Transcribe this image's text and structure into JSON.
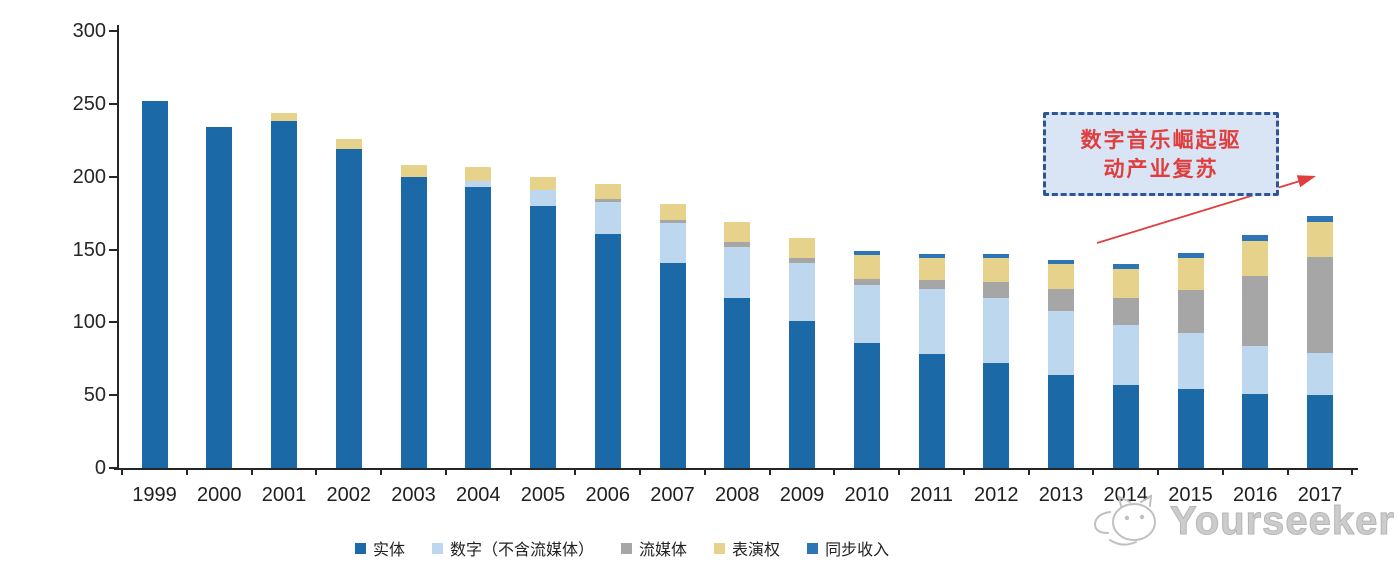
{
  "chart_data": {
    "type": "bar",
    "stacked": true,
    "categories": [
      "1999",
      "2000",
      "2001",
      "2002",
      "2003",
      "2004",
      "2005",
      "2006",
      "2007",
      "2008",
      "2009",
      "2010",
      "2011",
      "2012",
      "2013",
      "2014",
      "2015",
      "2016",
      "2017"
    ],
    "series": [
      {
        "name": "实体",
        "color": "#1C69A8",
        "values": [
          252,
          234,
          238,
          219,
          200,
          193,
          180,
          161,
          141,
          117,
          101,
          86,
          78,
          72,
          64,
          57,
          54,
          51,
          50
        ]
      },
      {
        "name": "数字（不含流媒体）",
        "color": "#BDD7EE",
        "values": [
          0,
          0,
          0,
          0,
          0,
          4,
          11,
          22,
          27,
          35,
          40,
          40,
          45,
          45,
          44,
          41,
          39,
          33,
          29
        ]
      },
      {
        "name": "流媒体",
        "color": "#A6A6A6",
        "values": [
          0,
          0,
          0,
          0,
          0,
          0,
          0,
          2,
          2,
          3,
          3,
          4,
          6,
          11,
          15,
          19,
          29,
          48,
          66
        ]
      },
      {
        "name": "表演权",
        "color": "#E6D28A",
        "values": [
          0,
          0,
          6,
          7,
          8,
          10,
          9,
          10,
          11,
          14,
          14,
          16,
          15,
          16,
          17,
          20,
          22,
          24,
          24
        ]
      },
      {
        "name": "同步收入",
        "color": "#2E75B6",
        "values": [
          0,
          0,
          0,
          0,
          0,
          0,
          0,
          0,
          0,
          0,
          0,
          3,
          3,
          3,
          3,
          3,
          4,
          4,
          4
        ]
      }
    ],
    "title": "",
    "xlabel": "",
    "ylabel": "",
    "ylim": [
      0,
      300
    ],
    "yticks": [
      0,
      50,
      100,
      150,
      200,
      250,
      300
    ],
    "grid": false,
    "legend_position": "bottom"
  },
  "annotation": {
    "line1": "数字音乐崛起驱",
    "line2": "动产业复苏",
    "text_color": "#E03E3E",
    "border_color": "#2F5597",
    "fill_color": "#D9E5F4",
    "arrow_color": "#E03E3E"
  },
  "watermark": {
    "text": "Yourseeker",
    "icon": "cat-logo-icon",
    "color": "#C4C4C4"
  }
}
